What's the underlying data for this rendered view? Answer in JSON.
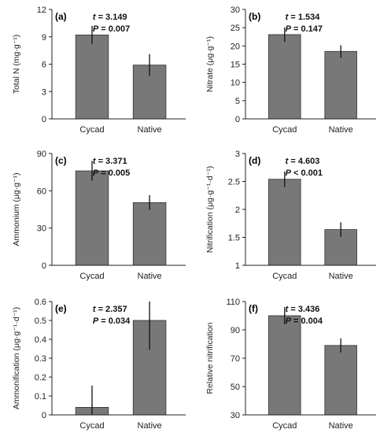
{
  "chart_data": [
    {
      "type": "bar",
      "panel_label": "(a)",
      "categories": [
        "Cycad",
        "Native"
      ],
      "values": [
        9.2,
        5.9
      ],
      "errors": [
        1.0,
        1.2
      ],
      "ylabel": "Total N (mg·g⁻¹)",
      "ylim": [
        0,
        12
      ],
      "yticks": [
        0,
        3,
        6,
        9,
        12
      ],
      "yticklabels": [
        "0",
        "3",
        "6",
        "9",
        "12"
      ],
      "stat_t": "t = 3.149",
      "stat_p": "P = 0.007",
      "bar_color": "#787878"
    },
    {
      "type": "bar",
      "panel_label": "(b)",
      "categories": [
        "Cycad",
        "Native"
      ],
      "values": [
        23.1,
        18.5
      ],
      "errors": [
        2.0,
        1.7
      ],
      "ylabel": "Nitrate (μg·g⁻¹)",
      "ylim": [
        0,
        30
      ],
      "yticks": [
        0,
        5,
        10,
        15,
        20,
        25,
        30
      ],
      "yticklabels": [
        "0",
        "5",
        "10",
        "15",
        "20",
        "25",
        "30"
      ],
      "stat_t": "t = 1.534",
      "stat_p": "P = 0.147",
      "bar_color": "#787878"
    },
    {
      "type": "bar",
      "panel_label": "(c)",
      "categories": [
        "Cycad",
        "Native"
      ],
      "values": [
        76,
        50.5
      ],
      "errors": [
        8,
        6
      ],
      "ylabel": "Ammonium (μg·g⁻¹)",
      "ylim": [
        0,
        90
      ],
      "yticks": [
        0,
        30,
        60,
        90
      ],
      "yticklabels": [
        "0",
        "30",
        "60",
        "90"
      ],
      "stat_t": "t = 3.371",
      "stat_p": "P = 0.005",
      "bar_color": "#787878"
    },
    {
      "type": "bar",
      "panel_label": "(d)",
      "categories": [
        "Cycad",
        "Native"
      ],
      "values": [
        2.54,
        1.64
      ],
      "errors": [
        0.14,
        0.13
      ],
      "ylabel": "Nitrification (μg·g⁻¹·d⁻¹)",
      "ylim": [
        1,
        3
      ],
      "yticks": [
        1,
        1.5,
        2,
        2.5,
        3
      ],
      "yticklabels": [
        "1",
        "1.5",
        "2",
        "2.5",
        "3"
      ],
      "stat_t": "t = 4.603",
      "stat_p": "P < 0.001",
      "bar_color": "#787878"
    },
    {
      "type": "bar",
      "panel_label": "(e)",
      "categories": [
        "Cycad",
        "Native"
      ],
      "values": [
        0.04,
        0.5
      ],
      "errors": [
        0.115,
        0.155
      ],
      "ylabel": "Ammonification (μg·g⁻¹·d⁻¹)",
      "ylim": [
        0,
        0.6
      ],
      "yticks": [
        0,
        0.1,
        0.2,
        0.3,
        0.4,
        0.5,
        0.6
      ],
      "yticklabels": [
        "0",
        "0.1",
        "0.2",
        "0.3",
        "0.4",
        "0.5",
        "0.6"
      ],
      "stat_t": "t = 2.357",
      "stat_p": "P = 0.034",
      "bar_color": "#787878"
    },
    {
      "type": "bar",
      "panel_label": "(f)",
      "categories": [
        "Cycad",
        "Native"
      ],
      "values": [
        100,
        79
      ],
      "errors": [
        6,
        5
      ],
      "ylabel": "Relative nitrification",
      "ylim": [
        30,
        110
      ],
      "yticks": [
        30,
        50,
        70,
        90,
        110
      ],
      "yticklabels": [
        "30",
        "50",
        "70",
        "90",
        "110"
      ],
      "stat_t": "t = 3.436",
      "stat_p": "P = 0.004",
      "bar_color": "#787878"
    }
  ]
}
